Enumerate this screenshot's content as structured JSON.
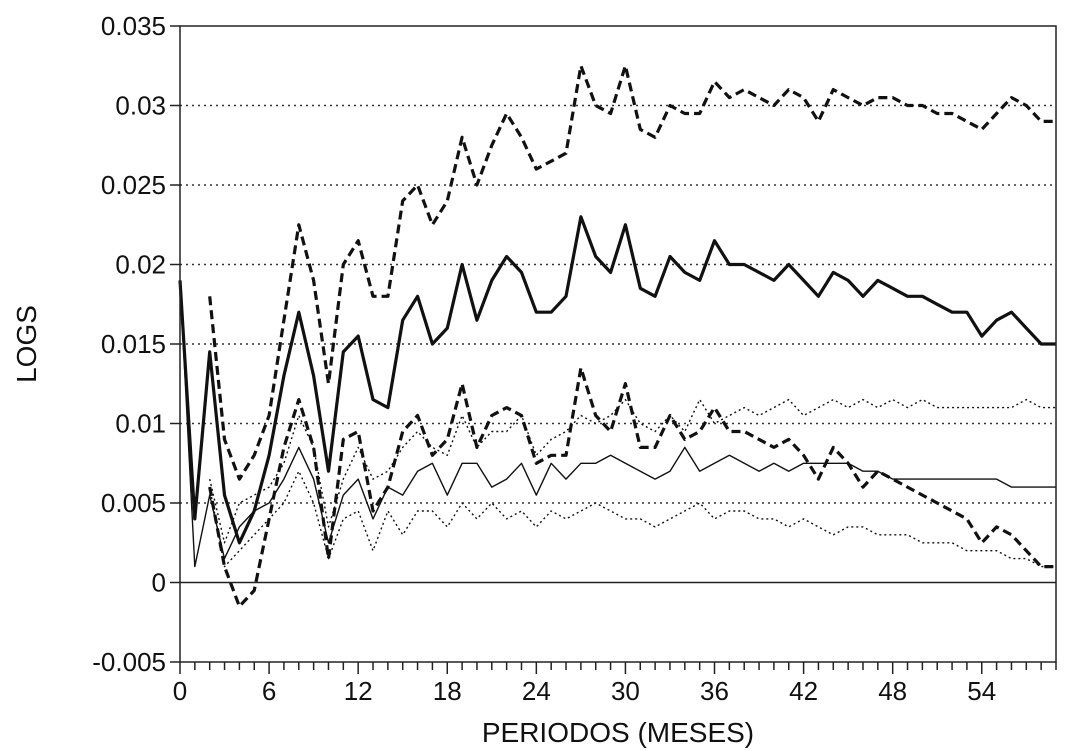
{
  "chart_data": {
    "type": "line",
    "title": "",
    "xlabel": "PERIODOS (MESES)",
    "ylabel": "LOGS",
    "xlim": [
      0,
      59
    ],
    "ylim": [
      -0.005,
      0.035
    ],
    "xticks": [
      0,
      6,
      12,
      18,
      24,
      30,
      36,
      42,
      48,
      54
    ],
    "yticks": [
      -0.005,
      0,
      0.005,
      0.01,
      0.015,
      0.02,
      0.025,
      0.03,
      0.035
    ],
    "ytick_labels": [
      "-0.005",
      "0",
      "0.005",
      "0.01",
      "0.015",
      "0.02",
      "0.025",
      "0.03",
      "0.035"
    ],
    "grid": "horizontal dotted",
    "legend": "none",
    "series": [
      {
        "style": "thick-solid",
        "x": [
          0,
          1,
          2,
          3,
          4,
          5,
          6,
          7,
          8,
          9,
          10,
          11,
          12,
          13,
          14,
          15,
          16,
          17,
          18,
          19,
          20,
          21,
          22,
          23,
          24,
          25,
          26,
          27,
          28,
          29,
          30,
          31,
          32,
          33,
          34,
          35,
          36,
          37,
          38,
          39,
          40,
          41,
          42,
          43,
          44,
          45,
          46,
          47,
          48,
          49,
          50,
          51,
          52,
          53,
          54,
          55,
          56,
          57,
          58,
          59
        ],
        "values": [
          0.019,
          0.004,
          0.0145,
          0.0055,
          0.0025,
          0.0045,
          0.008,
          0.013,
          0.017,
          0.013,
          0.007,
          0.0145,
          0.0155,
          0.0115,
          0.011,
          0.0165,
          0.018,
          0.015,
          0.016,
          0.02,
          0.0165,
          0.019,
          0.0205,
          0.0195,
          0.017,
          0.017,
          0.018,
          0.023,
          0.0205,
          0.0195,
          0.0225,
          0.0185,
          0.018,
          0.0205,
          0.0195,
          0.019,
          0.0215,
          0.02,
          0.02,
          0.0195,
          0.019,
          0.02,
          0.019,
          0.018,
          0.0195,
          0.019,
          0.018,
          0.019,
          0.0185,
          0.018,
          0.018,
          0.0175,
          0.017,
          0.017,
          0.0155,
          0.0165,
          0.017,
          0.016,
          0.015,
          0.015
        ]
      },
      {
        "style": "thick-dashed",
        "x": [
          2,
          3,
          4,
          5,
          6,
          7,
          8,
          9,
          10,
          11,
          12,
          13,
          14,
          15,
          16,
          17,
          18,
          19,
          20,
          21,
          22,
          23,
          24,
          25,
          26,
          27,
          28,
          29,
          30,
          31,
          32,
          33,
          34,
          35,
          36,
          37,
          38,
          39,
          40,
          41,
          42,
          43,
          44,
          45,
          46,
          47,
          48,
          49,
          50,
          51,
          52,
          53,
          54,
          55,
          56,
          57,
          58,
          59
        ],
        "values": [
          0.018,
          0.009,
          0.0065,
          0.008,
          0.0105,
          0.0165,
          0.0225,
          0.019,
          0.0125,
          0.02,
          0.0215,
          0.018,
          0.018,
          0.024,
          0.025,
          0.0225,
          0.024,
          0.028,
          0.025,
          0.0275,
          0.0295,
          0.028,
          0.026,
          0.0265,
          0.027,
          0.0325,
          0.03,
          0.0295,
          0.0325,
          0.0285,
          0.028,
          0.03,
          0.0295,
          0.0295,
          0.0315,
          0.0305,
          0.031,
          0.0305,
          0.03,
          0.031,
          0.0305,
          0.029,
          0.031,
          0.0305,
          0.03,
          0.0305,
          0.0305,
          0.03,
          0.03,
          0.0295,
          0.0295,
          0.029,
          0.0285,
          0.0295,
          0.0305,
          0.03,
          0.029,
          0.029
        ]
      },
      {
        "style": "thick-dashed",
        "x": [
          2,
          3,
          4,
          5,
          6,
          7,
          8,
          9,
          10,
          11,
          12,
          13,
          14,
          15,
          16,
          17,
          18,
          19,
          20,
          21,
          22,
          23,
          24,
          25,
          26,
          27,
          28,
          29,
          30,
          31,
          32,
          33,
          34,
          35,
          36,
          37,
          38,
          39,
          40,
          41,
          42,
          43,
          44,
          45,
          46,
          47,
          48,
          49,
          50,
          51,
          52,
          53,
          54,
          55,
          56,
          57,
          58,
          59
        ],
        "values": [
          0.006,
          0.001,
          -0.0015,
          -0.0005,
          0.004,
          0.0085,
          0.0115,
          0.0085,
          0.0015,
          0.009,
          0.0095,
          0.0045,
          0.006,
          0.0095,
          0.0105,
          0.008,
          0.009,
          0.0125,
          0.0085,
          0.0105,
          0.011,
          0.0105,
          0.0075,
          0.008,
          0.008,
          0.0135,
          0.0105,
          0.0095,
          0.0125,
          0.0085,
          0.0085,
          0.0105,
          0.009,
          0.0095,
          0.011,
          0.0095,
          0.0095,
          0.009,
          0.0085,
          0.009,
          0.008,
          0.0065,
          0.0085,
          0.0075,
          0.006,
          0.007,
          0.0065,
          0.006,
          0.0055,
          0.005,
          0.0045,
          0.004,
          0.0025,
          0.0035,
          0.003,
          0.002,
          0.001,
          0.001
        ]
      },
      {
        "style": "thin-solid",
        "x": [
          0,
          1,
          2,
          3,
          4,
          5,
          6,
          7,
          8,
          9,
          10,
          11,
          12,
          13,
          14,
          15,
          16,
          17,
          18,
          19,
          20,
          21,
          22,
          23,
          24,
          25,
          26,
          27,
          28,
          29,
          30,
          31,
          32,
          33,
          34,
          35,
          36,
          37,
          38,
          39,
          40,
          41,
          42,
          43,
          44,
          45,
          46,
          47,
          48,
          49,
          50,
          51,
          52,
          53,
          54,
          55,
          56,
          57,
          58,
          59
        ],
        "values": [
          0.019,
          0.001,
          0.0055,
          0.0015,
          0.0035,
          0.0045,
          0.005,
          0.0065,
          0.0085,
          0.0065,
          0.0025,
          0.0055,
          0.0065,
          0.004,
          0.006,
          0.0055,
          0.007,
          0.0075,
          0.0055,
          0.0075,
          0.0075,
          0.006,
          0.0065,
          0.0075,
          0.0055,
          0.0075,
          0.0065,
          0.0075,
          0.0075,
          0.008,
          0.0075,
          0.007,
          0.0065,
          0.007,
          0.0085,
          0.007,
          0.0075,
          0.008,
          0.0075,
          0.007,
          0.0075,
          0.007,
          0.0075,
          0.0075,
          0.0075,
          0.0075,
          0.007,
          0.007,
          0.0065,
          0.0065,
          0.0065,
          0.0065,
          0.0065,
          0.0065,
          0.0065,
          0.0065,
          0.006,
          0.006,
          0.006,
          0.006
        ]
      },
      {
        "style": "thin-dotted",
        "x": [
          2,
          3,
          4,
          5,
          6,
          7,
          8,
          9,
          10,
          11,
          12,
          13,
          14,
          15,
          16,
          17,
          18,
          19,
          20,
          21,
          22,
          23,
          24,
          25,
          26,
          27,
          28,
          29,
          30,
          31,
          32,
          33,
          34,
          35,
          36,
          37,
          38,
          39,
          40,
          41,
          42,
          43,
          44,
          45,
          46,
          47,
          48,
          49,
          50,
          51,
          52,
          53,
          54,
          55,
          56,
          57,
          58,
          59
        ],
        "values": [
          0.0065,
          0.0025,
          0.005,
          0.0055,
          0.006,
          0.0075,
          0.0105,
          0.0085,
          0.0035,
          0.0065,
          0.0085,
          0.0065,
          0.007,
          0.0085,
          0.0095,
          0.0085,
          0.008,
          0.0105,
          0.0085,
          0.0095,
          0.0095,
          0.0105,
          0.008,
          0.009,
          0.0095,
          0.0105,
          0.01,
          0.0105,
          0.0115,
          0.01,
          0.0095,
          0.0105,
          0.0095,
          0.0115,
          0.01,
          0.0105,
          0.011,
          0.0105,
          0.011,
          0.0115,
          0.0105,
          0.011,
          0.0115,
          0.011,
          0.0115,
          0.011,
          0.0115,
          0.011,
          0.0115,
          0.011,
          0.011,
          0.011,
          0.011,
          0.011,
          0.011,
          0.0115,
          0.011,
          0.011
        ]
      },
      {
        "style": "thin-dotted",
        "x": [
          2,
          3,
          4,
          5,
          6,
          7,
          8,
          9,
          10,
          11,
          12,
          13,
          14,
          15,
          16,
          17,
          18,
          19,
          20,
          21,
          22,
          23,
          24,
          25,
          26,
          27,
          28,
          29,
          30,
          31,
          32,
          33,
          34,
          35,
          36,
          37,
          38,
          39,
          40,
          41,
          42,
          43,
          44,
          45,
          46,
          47,
          48,
          49,
          50,
          51,
          52,
          53,
          54,
          55,
          56,
          57,
          58,
          59
        ],
        "values": [
          0.006,
          0.001,
          0.002,
          0.003,
          0.004,
          0.005,
          0.007,
          0.005,
          0.0015,
          0.004,
          0.0045,
          0.002,
          0.0045,
          0.003,
          0.0045,
          0.0045,
          0.0035,
          0.005,
          0.004,
          0.005,
          0.004,
          0.0045,
          0.0035,
          0.0045,
          0.004,
          0.0045,
          0.005,
          0.0045,
          0.004,
          0.004,
          0.0035,
          0.004,
          0.0045,
          0.005,
          0.004,
          0.0045,
          0.0045,
          0.004,
          0.004,
          0.0035,
          0.004,
          0.0035,
          0.003,
          0.0035,
          0.0035,
          0.003,
          0.003,
          0.003,
          0.0025,
          0.0025,
          0.0025,
          0.002,
          0.002,
          0.002,
          0.0015,
          0.0015,
          0.001,
          0.001
        ]
      }
    ]
  }
}
